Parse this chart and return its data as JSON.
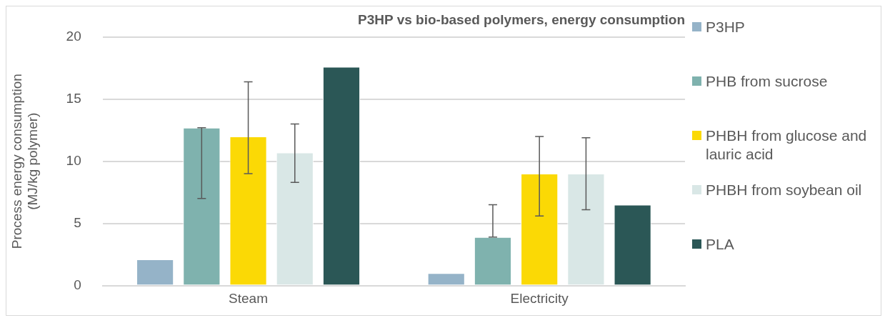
{
  "chart_data": {
    "type": "bar",
    "title": "P3HP vs bio-based polymers, energy consumption",
    "ylabel": "Process energy consumption\n(MJ/kg polymer)",
    "categories": [
      "Steam",
      "Electricity"
    ],
    "series": [
      {
        "name": "P3HP",
        "color": "#95b3c8",
        "values": [
          2.1,
          1.0
        ]
      },
      {
        "name": "PHB from sucrose",
        "color": "#7fb2ae",
        "values": [
          12.7,
          3.9
        ],
        "errors": [
          [
            7.0,
            12.7
          ],
          [
            3.9,
            6.5
          ]
        ]
      },
      {
        "name": "PHBH from glucose and lauric acid",
        "color": "#fbd905",
        "values": [
          12.0,
          9.0
        ],
        "errors": [
          [
            9.0,
            16.4
          ],
          [
            5.6,
            12.0
          ]
        ]
      },
      {
        "name": "PHBH from soybean oil",
        "color": "#d9e7e6",
        "values": [
          10.7,
          9.0
        ],
        "errors": [
          [
            8.3,
            13.0
          ],
          [
            6.1,
            11.9
          ]
        ]
      },
      {
        "name": "PLA",
        "color": "#2b5756",
        "values": [
          17.6,
          6.5
        ]
      }
    ],
    "ylim": [
      0,
      20
    ],
    "yticks": [
      0,
      5,
      10,
      15,
      20
    ],
    "grid": "y",
    "legend": "right"
  }
}
